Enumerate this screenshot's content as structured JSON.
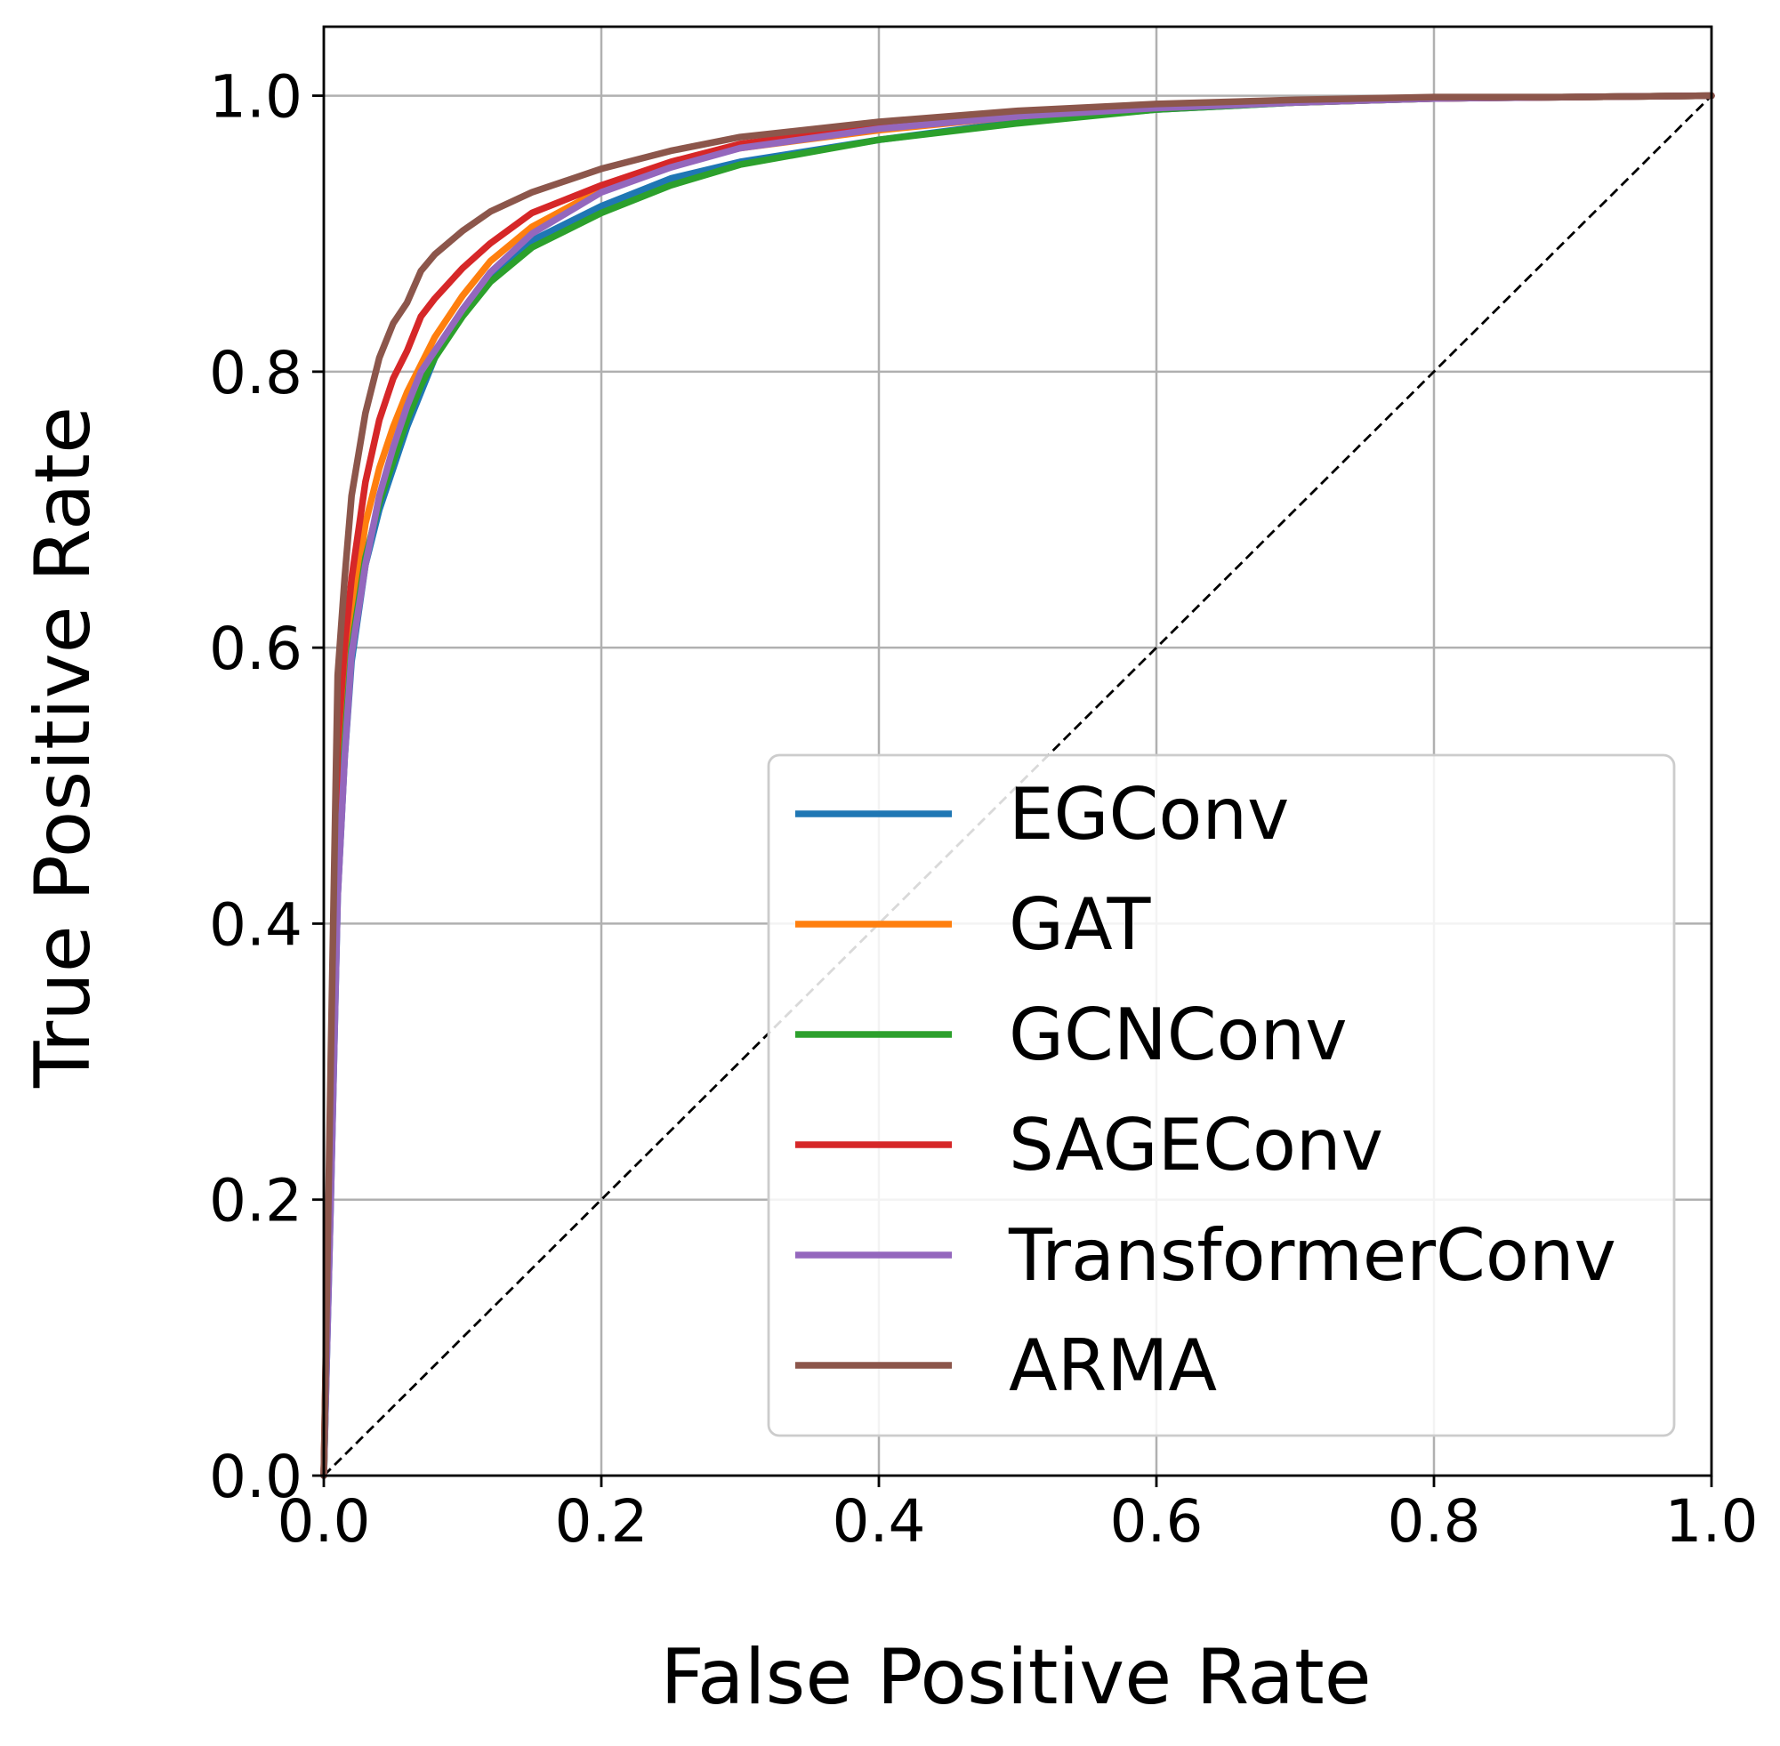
{
  "chart_data": {
    "type": "line",
    "title": "",
    "xlabel": "False Positive Rate",
    "ylabel": "True Positive Rate",
    "xlim": [
      0.0,
      1.0
    ],
    "ylim": [
      0.0,
      1.05
    ],
    "xticks": [
      0.0,
      0.2,
      0.4,
      0.6,
      0.8,
      1.0
    ],
    "yticks": [
      0.0,
      0.2,
      0.4,
      0.6,
      0.8,
      1.0
    ],
    "xtick_labels": [
      "0.0",
      "0.2",
      "0.4",
      "0.6",
      "0.8",
      "1.0"
    ],
    "ytick_labels": [
      "0.0",
      "0.2",
      "0.4",
      "0.6",
      "0.8",
      "1.0"
    ],
    "grid": true,
    "legend_position": "lower-right",
    "diagonal": {
      "x": [
        0.0,
        1.0
      ],
      "y": [
        0.0,
        1.0
      ],
      "color": "#000000",
      "style": "dashed"
    },
    "series": [
      {
        "name": "EGConv",
        "color": "#1f77b4",
        "x": [
          0.0,
          0.005,
          0.01,
          0.015,
          0.02,
          0.03,
          0.04,
          0.05,
          0.06,
          0.07,
          0.08,
          0.1,
          0.12,
          0.15,
          0.2,
          0.25,
          0.3,
          0.4,
          0.5,
          0.6,
          0.7,
          0.8,
          0.9,
          1.0
        ],
        "y": [
          0.0,
          0.2,
          0.42,
          0.52,
          0.59,
          0.66,
          0.7,
          0.73,
          0.76,
          0.785,
          0.81,
          0.845,
          0.87,
          0.895,
          0.92,
          0.94,
          0.952,
          0.968,
          0.981,
          0.99,
          0.995,
          0.998,
          0.999,
          1.0
        ]
      },
      {
        "name": "GAT",
        "color": "#ff7f0e",
        "x": [
          0.0,
          0.005,
          0.01,
          0.015,
          0.02,
          0.03,
          0.04,
          0.05,
          0.06,
          0.07,
          0.08,
          0.1,
          0.12,
          0.15,
          0.2,
          0.25,
          0.3,
          0.4,
          0.5,
          0.6,
          0.7,
          0.8,
          0.9,
          1.0
        ],
        "y": [
          0.0,
          0.25,
          0.5,
          0.57,
          0.62,
          0.69,
          0.73,
          0.76,
          0.785,
          0.805,
          0.825,
          0.855,
          0.88,
          0.905,
          0.932,
          0.95,
          0.962,
          0.975,
          0.985,
          0.991,
          0.995,
          0.998,
          0.999,
          1.0
        ]
      },
      {
        "name": "GCNConv",
        "color": "#2ca02c",
        "x": [
          0.0,
          0.005,
          0.01,
          0.015,
          0.02,
          0.03,
          0.04,
          0.05,
          0.06,
          0.07,
          0.08,
          0.1,
          0.12,
          0.15,
          0.2,
          0.25,
          0.3,
          0.4,
          0.5,
          0.6,
          0.7,
          0.8,
          0.9,
          1.0
        ],
        "y": [
          0.0,
          0.22,
          0.45,
          0.53,
          0.6,
          0.665,
          0.705,
          0.735,
          0.765,
          0.79,
          0.81,
          0.84,
          0.865,
          0.89,
          0.915,
          0.935,
          0.95,
          0.968,
          0.98,
          0.99,
          0.995,
          0.998,
          0.999,
          1.0
        ]
      },
      {
        "name": "SAGEConv",
        "color": "#d62728",
        "x": [
          0.0,
          0.005,
          0.01,
          0.015,
          0.02,
          0.03,
          0.04,
          0.05,
          0.06,
          0.07,
          0.08,
          0.1,
          0.12,
          0.15,
          0.2,
          0.25,
          0.3,
          0.4,
          0.5,
          0.6,
          0.7,
          0.8,
          0.9,
          1.0
        ],
        "y": [
          0.0,
          0.28,
          0.53,
          0.6,
          0.65,
          0.72,
          0.765,
          0.795,
          0.815,
          0.84,
          0.853,
          0.875,
          0.893,
          0.915,
          0.935,
          0.952,
          0.965,
          0.978,
          0.987,
          0.992,
          0.996,
          0.998,
          0.999,
          1.0
        ]
      },
      {
        "name": "TransformerConv",
        "color": "#9467bd",
        "x": [
          0.0,
          0.005,
          0.01,
          0.015,
          0.02,
          0.03,
          0.04,
          0.05,
          0.06,
          0.07,
          0.08,
          0.1,
          0.12,
          0.15,
          0.2,
          0.25,
          0.3,
          0.4,
          0.5,
          0.6,
          0.7,
          0.8,
          0.9,
          1.0
        ],
        "y": [
          0.0,
          0.2,
          0.42,
          0.52,
          0.595,
          0.66,
          0.71,
          0.745,
          0.775,
          0.8,
          0.815,
          0.845,
          0.872,
          0.9,
          0.93,
          0.948,
          0.962,
          0.976,
          0.985,
          0.991,
          0.995,
          0.998,
          0.999,
          1.0
        ]
      },
      {
        "name": "ARMA",
        "color": "#8c564b",
        "x": [
          0.0,
          0.005,
          0.01,
          0.015,
          0.02,
          0.03,
          0.04,
          0.05,
          0.06,
          0.07,
          0.08,
          0.1,
          0.12,
          0.15,
          0.2,
          0.25,
          0.3,
          0.4,
          0.5,
          0.6,
          0.7,
          0.8,
          0.9,
          1.0
        ],
        "y": [
          0.0,
          0.3,
          0.58,
          0.65,
          0.71,
          0.77,
          0.81,
          0.835,
          0.85,
          0.873,
          0.885,
          0.902,
          0.916,
          0.93,
          0.947,
          0.96,
          0.97,
          0.981,
          0.989,
          0.994,
          0.997,
          0.999,
          0.999,
          1.0
        ]
      }
    ]
  }
}
